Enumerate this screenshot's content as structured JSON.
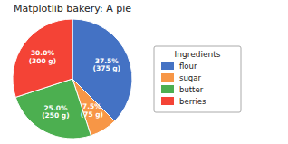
{
  "chart_data": {
    "type": "pie",
    "title": "Matplotlib bakery: A pie",
    "categories": [
      "flour",
      "sugar",
      "butter",
      "berries"
    ],
    "values": [
      37.5,
      7.5,
      25.0,
      30.0
    ],
    "value_labels": [
      "37.5%\n(375 g)",
      "7.5%\n(75 g)",
      "25.0%\n(250 g)",
      "30.0%\n(300 g)"
    ],
    "colors": [
      "#4472c4",
      "#f79646",
      "#4caf50",
      "#f44336"
    ],
    "legend_title": "Ingredients",
    "legend": "right",
    "data_labels": true
  }
}
